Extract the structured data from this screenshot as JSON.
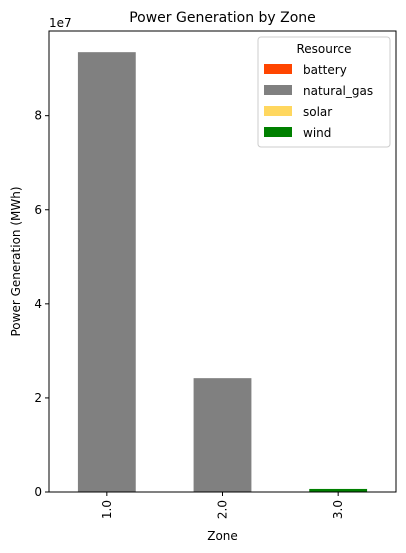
{
  "chart_data": {
    "type": "bar",
    "stacked": true,
    "title": "Power Generation by Zone",
    "xlabel": "Zone",
    "ylabel": "Power Generation  (MWh)",
    "y_multiplier_label": "1e7",
    "y_scale": 10000000,
    "ylim": [
      0,
      98000000
    ],
    "y_ticks": [
      0,
      20000000,
      40000000,
      60000000,
      80000000
    ],
    "y_tick_labels": [
      "0",
      "2",
      "4",
      "6",
      "8"
    ],
    "categories": [
      "1.0",
      "2.0",
      "3.0"
    ],
    "legend": {
      "title": "Resource",
      "position": "top-right"
    },
    "series": [
      {
        "name": "battery",
        "color": "#ff4500",
        "values": [
          0,
          0,
          0
        ]
      },
      {
        "name": "natural_gas",
        "color": "#808080",
        "values": [
          93500000,
          24200000,
          0
        ]
      },
      {
        "name": "solar",
        "color": "#ffd75f",
        "values": [
          0,
          0,
          0
        ]
      },
      {
        "name": "wind",
        "color": "#008000",
        "values": [
          0,
          0,
          650000
        ]
      }
    ],
    "grid": false
  }
}
